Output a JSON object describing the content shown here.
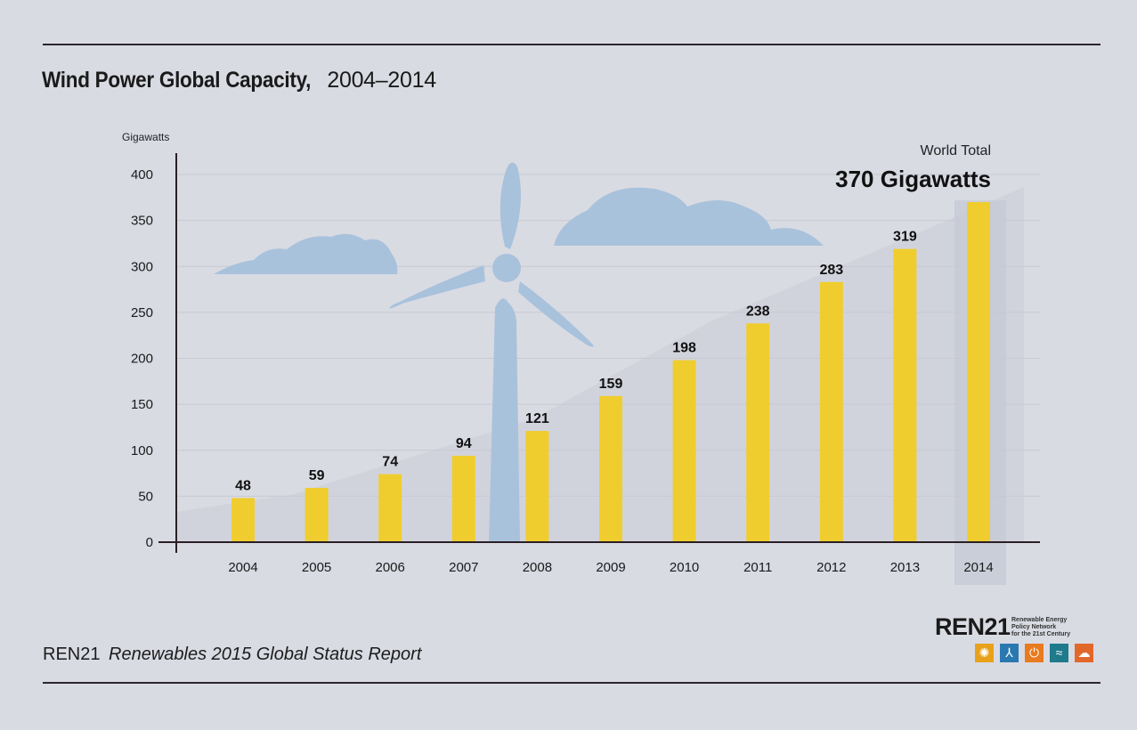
{
  "header": {
    "title_bold": "Wind Power Global Capacity,",
    "title_light": "2004–2014"
  },
  "footer": {
    "publisher": "REN21",
    "report": "Renewables 2015 Global Status Report"
  },
  "logo": {
    "wordmark_prefix": "REN",
    "wordmark_number": "21",
    "tagline": [
      "Renewable Energy",
      "Policy Network",
      "for the 21st Century"
    ],
    "tiles": [
      {
        "icon": "sun-icon",
        "color": "#e8a21a",
        "glyph": "✺"
      },
      {
        "icon": "wind-turbine-icon",
        "color": "#2a78b0",
        "glyph": "⅄"
      },
      {
        "icon": "power-icon",
        "color": "#e87a1f",
        "glyph": "⏻"
      },
      {
        "icon": "water-waves-icon",
        "color": "#1f7a8c",
        "glyph": "≈"
      },
      {
        "icon": "tree-icon",
        "color": "#e2682a",
        "glyph": "☁"
      }
    ]
  },
  "colors": {
    "bar": "#f0cd2e",
    "illustration": "#a9c2dc",
    "highlight_column": "#c5cbd6",
    "background": "#d9dbe3",
    "axis": "#2a1f24"
  },
  "chart_data": {
    "type": "bar",
    "title": "Wind Power Global Capacity, 2004–2014",
    "xlabel": "",
    "ylabel": "Gigawatts",
    "ylim": [
      0,
      400
    ],
    "yticks": [
      0,
      50,
      100,
      150,
      200,
      250,
      300,
      350,
      400
    ],
    "grid": true,
    "categories": [
      "2004",
      "2005",
      "2006",
      "2007",
      "2008",
      "2009",
      "2010",
      "2011",
      "2012",
      "2013",
      "2014"
    ],
    "values": [
      48,
      59,
      74,
      94,
      121,
      159,
      198,
      238,
      283,
      319,
      370
    ],
    "data_labels": [
      "48",
      "59",
      "74",
      "94",
      "121",
      "159",
      "198",
      "238",
      "283",
      "319",
      ""
    ],
    "highlighted_category": "2014",
    "annotation": {
      "label": "World Total",
      "value_text": "370 Gigawatts",
      "placement": "top-right"
    }
  }
}
